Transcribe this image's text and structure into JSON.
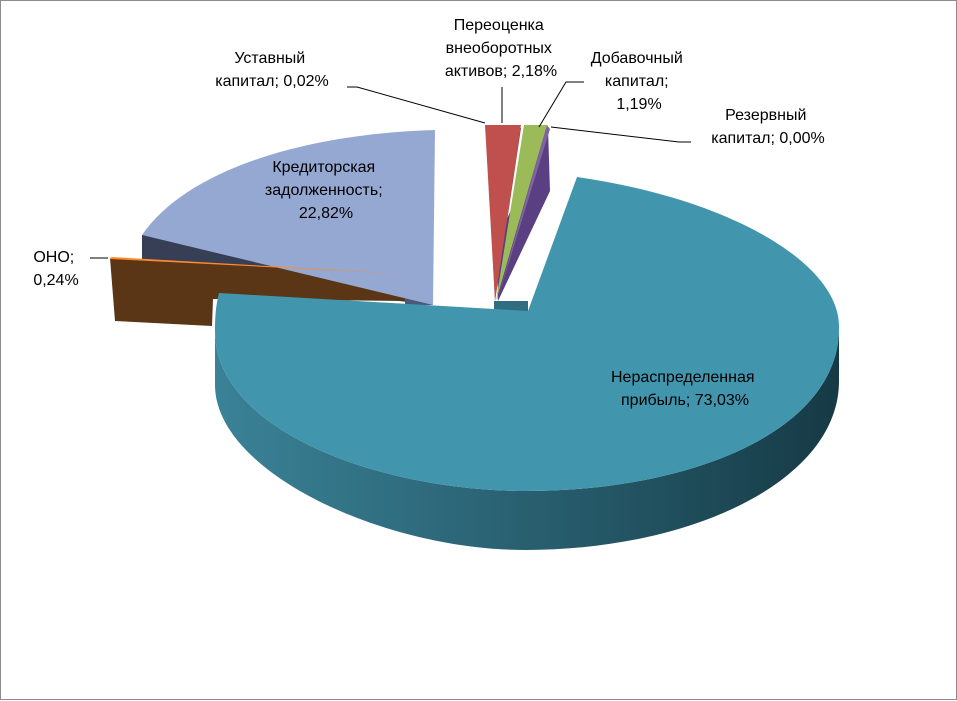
{
  "chart_data": {
    "type": "pie",
    "title": "",
    "legend": "none",
    "series": [
      {
        "values": [
          73.03,
          0.24,
          22.82,
          0.02,
          2.18,
          1.19,
          0.0
        ],
        "categories": [
          "Нераспределенная прибыль",
          "ОНО",
          "Кредиторская задолженность",
          "Уставный капитал",
          "Переоценка внеоборотных активов",
          "Добавочный капитал",
          "Резервный капитал"
        ]
      }
    ],
    "labels": [
      [
        "Нераспределенная",
        "прибыль; 73,03%"
      ],
      [
        "ОНО;",
        "0,24%"
      ],
      [
        "Кредиторская",
        "задолженность;",
        "22,82%"
      ],
      [
        "Уставный",
        "капитал; 0,02%"
      ],
      [
        "Переоценка",
        "внеоборотных",
        "активов; 2,18%"
      ],
      [
        "Добавочный",
        "капитал;",
        "1,19%"
      ],
      [
        "Резервный",
        "капитал; 0,00%"
      ]
    ],
    "colors": [
      "#4196ae",
      "#e46c0a",
      "#8fa3cf",
      "#7b2d2d",
      "#c0504d",
      "#9bbb59",
      "#8064a2"
    ]
  }
}
